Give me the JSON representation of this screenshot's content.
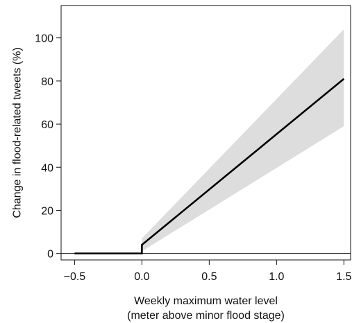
{
  "chart_data": {
    "type": "line",
    "title": "",
    "xlabel_lines": [
      "Weekly maximum water level",
      "(meter above minor flood stage)"
    ],
    "ylabel": "Change in flood-related tweets (%)",
    "xlim": [
      -0.6,
      1.55
    ],
    "ylim": [
      -3,
      115
    ],
    "x_ticks": [
      -0.5,
      0.0,
      0.5,
      1.0,
      1.5
    ],
    "x_tick_labels": [
      "−0.5",
      "0.0",
      "0.5",
      "1.0",
      "1.5"
    ],
    "y_ticks": [
      0,
      20,
      40,
      60,
      80,
      100
    ],
    "y_tick_labels": [
      "0",
      "20",
      "40",
      "60",
      "80",
      "100"
    ],
    "grid": false,
    "reference_line_y": 0,
    "series": [
      {
        "points": [
          {
            "x": -0.5,
            "y": 0
          },
          {
            "x": 0.0,
            "y": 0
          },
          {
            "x": 0.0,
            "y": 4
          },
          {
            "x": 1.5,
            "y": 81
          }
        ],
        "color": "#000000"
      }
    ],
    "confidence_band": {
      "color": "#dddddd",
      "x": [
        0.0,
        1.5
      ],
      "lower": [
        1,
        59
      ],
      "upper": [
        7,
        104
      ]
    }
  }
}
